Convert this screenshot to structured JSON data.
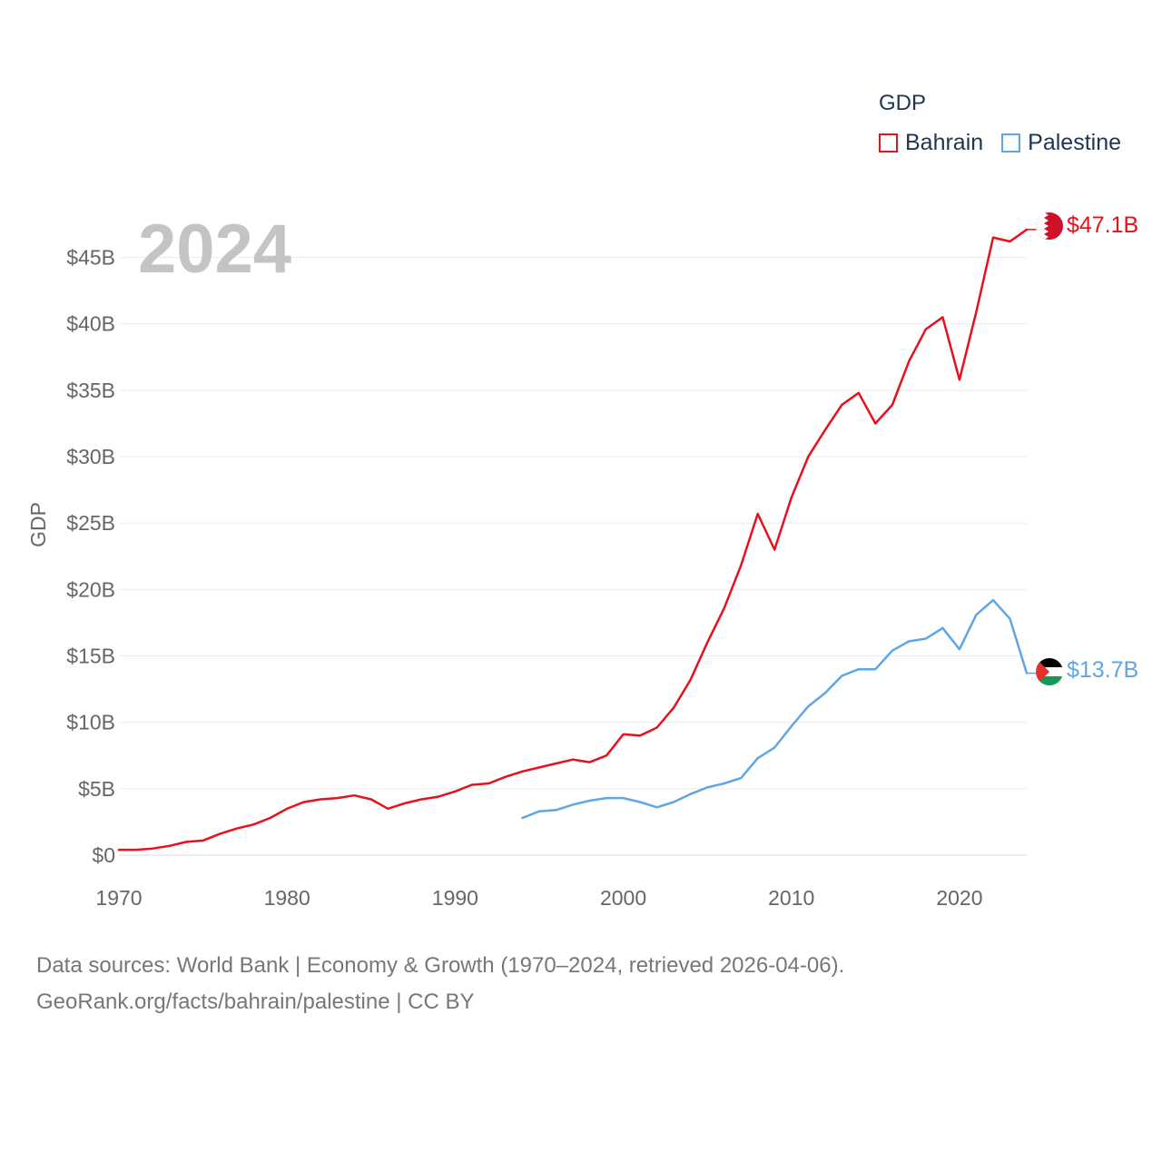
{
  "legend": {
    "title": "GDP",
    "items": [
      {
        "label": "Bahrain",
        "color": "#e8101b"
      },
      {
        "label": "Palestine",
        "color": "#5ea7e4"
      }
    ]
  },
  "source": {
    "line1": "Data sources: World Bank | Economy & Growth (1970–2024, retrieved 2026-04-06).",
    "line2": "GeoRank.org/facts/bahrain/palestine | CC BY"
  },
  "chart_data": {
    "type": "line",
    "title": "GDP",
    "year_overlay": "2024",
    "ylabel": "GDP",
    "xlabel": "",
    "xlim": [
      1970,
      2024
    ],
    "ylim": [
      0,
      47.5
    ],
    "x_ticks": [
      1970,
      1980,
      1990,
      2000,
      2010,
      2020
    ],
    "y_ticks": [
      {
        "value": 0,
        "label": "$0"
      },
      {
        "value": 5,
        "label": "$5B"
      },
      {
        "value": 10,
        "label": "$10B"
      },
      {
        "value": 15,
        "label": "$15B"
      },
      {
        "value": 20,
        "label": "$20B"
      },
      {
        "value": 25,
        "label": "$25B"
      },
      {
        "value": 30,
        "label": "$30B"
      },
      {
        "value": 35,
        "label": "$35B"
      },
      {
        "value": 40,
        "label": "$40B"
      },
      {
        "value": 45,
        "label": "$45B"
      }
    ],
    "grid": true,
    "series": [
      {
        "name": "Bahrain",
        "color": "#e8101b",
        "end_label": "$47.1B",
        "x": [
          1970,
          1971,
          1972,
          1973,
          1974,
          1975,
          1976,
          1977,
          1978,
          1979,
          1980,
          1981,
          1982,
          1983,
          1984,
          1985,
          1986,
          1987,
          1988,
          1989,
          1990,
          1991,
          1992,
          1993,
          1994,
          1995,
          1996,
          1997,
          1998,
          1999,
          2000,
          2001,
          2002,
          2003,
          2004,
          2005,
          2006,
          2007,
          2008,
          2009,
          2010,
          2011,
          2012,
          2013,
          2014,
          2015,
          2016,
          2017,
          2018,
          2019,
          2020,
          2021,
          2022,
          2023,
          2024
        ],
        "values": [
          0.4,
          0.4,
          0.5,
          0.7,
          1.0,
          1.1,
          1.6,
          2.0,
          2.3,
          2.8,
          3.5,
          4.0,
          4.2,
          4.3,
          4.5,
          4.2,
          3.5,
          3.9,
          4.2,
          4.4,
          4.8,
          5.3,
          5.4,
          5.9,
          6.3,
          6.6,
          6.9,
          7.2,
          7.0,
          7.5,
          9.1,
          9.0,
          9.6,
          11.1,
          13.2,
          16.0,
          18.6,
          21.8,
          25.7,
          23.0,
          26.9,
          30.0,
          32.0,
          33.9,
          34.8,
          32.5,
          33.9,
          37.2,
          39.6,
          40.5,
          35.8,
          40.9,
          46.5,
          46.2,
          47.1
        ]
      },
      {
        "name": "Palestine",
        "color": "#5ea7e4",
        "end_label": "$13.7B",
        "x": [
          1994,
          1995,
          1996,
          1997,
          1998,
          1999,
          2000,
          2001,
          2002,
          2003,
          2004,
          2005,
          2006,
          2007,
          2008,
          2009,
          2010,
          2011,
          2012,
          2013,
          2014,
          2015,
          2016,
          2017,
          2018,
          2019,
          2020,
          2021,
          2022,
          2023,
          2024
        ],
        "values": [
          2.8,
          3.3,
          3.4,
          3.8,
          4.1,
          4.3,
          4.3,
          4.0,
          3.6,
          4.0,
          4.6,
          5.1,
          5.4,
          5.8,
          7.3,
          8.1,
          9.7,
          11.2,
          12.2,
          13.5,
          14.0,
          14.0,
          15.4,
          16.1,
          16.3,
          17.1,
          15.5,
          18.1,
          19.2,
          17.8,
          13.7
        ]
      }
    ]
  }
}
